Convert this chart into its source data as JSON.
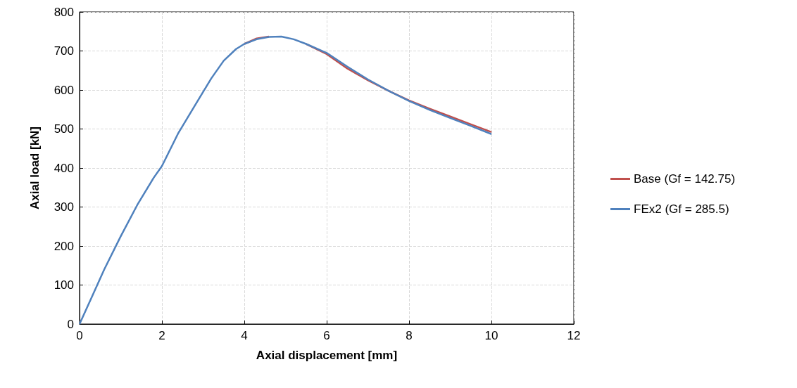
{
  "chart_data": {
    "type": "line",
    "xlabel": "Axial displacement [mm]",
    "ylabel": "Axial load [kN]",
    "xlim": [
      0,
      12
    ],
    "xticks": [
      0,
      2,
      4,
      6,
      8,
      10,
      12
    ],
    "ylim": [
      0,
      800
    ],
    "yticks": [
      0,
      100,
      200,
      300,
      400,
      500,
      600,
      700,
      800
    ],
    "grid": true,
    "legend": "right",
    "marker": "none",
    "line_style": "solid",
    "series": [
      {
        "name": "Base (Gf = 142.75)",
        "color": "#c0504d",
        "x": [
          4,
          4.3,
          4.6,
          4.9,
          5.2,
          5.5,
          6,
          6.5,
          7,
          7.5,
          8,
          8.5,
          9,
          9.5,
          10
        ],
        "values": [
          718,
          732,
          737,
          null,
          null,
          718,
          692,
          655,
          625,
          598,
          573,
          552,
          532,
          512,
          492
        ]
      },
      {
        "name": "FEx2 (Gf = 285.5)",
        "color": "#4f81bd",
        "x": [
          0,
          0.3,
          0.6,
          1,
          1.4,
          1.8,
          2,
          2.4,
          2.8,
          3.2,
          3.5,
          3.8,
          4,
          4.3,
          4.6,
          4.9,
          5.2,
          5.5,
          6,
          6.5,
          7,
          7.5,
          8,
          8.5,
          9,
          9.5,
          10
        ],
        "values": [
          0,
          70,
          140,
          225,
          305,
          375,
          405,
          490,
          560,
          630,
          675,
          705,
          718,
          730,
          736,
          737,
          730,
          718,
          695,
          660,
          627,
          598,
          572,
          549,
          528,
          508,
          487
        ]
      }
    ]
  }
}
